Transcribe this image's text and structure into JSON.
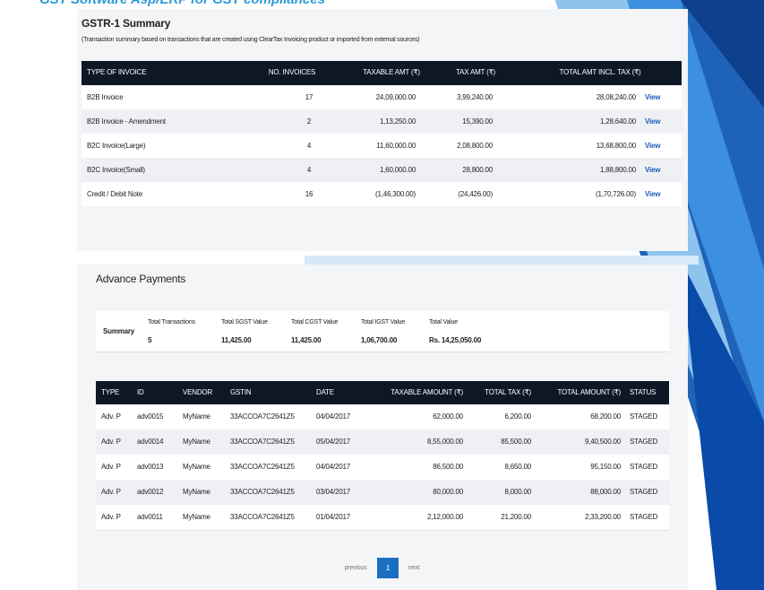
{
  "banner": "GST Software Asp/ERP for GST compliances",
  "gstr1": {
    "title": "GSTR-1 Summary",
    "subtitle": "(Transaction summary based on transactions that are created using ClearTax Invoicing product or imported from external sources)",
    "columns": [
      "TYPE OF INVOICE",
      "NO. INVOICES",
      "TAXABLE AMT (₹)",
      "TAX AMT (₹)",
      "TOTAL AMT INCL. TAX (₹)"
    ],
    "rows": [
      [
        "B2B Invoice",
        "17",
        "24,09,000.00",
        "3,99,240.00",
        "28,08,240.00",
        "View"
      ],
      [
        "B2B Invoice - Amendment",
        "2",
        "1,13,250.00",
        "15,390.00",
        "1,28,640.00",
        "View"
      ],
      [
        "B2C Invoice(Large)",
        "4",
        "11,60,000.00",
        "2,08,800.00",
        "13,68,800.00",
        "View"
      ],
      [
        "B2C Invoice(Small)",
        "4",
        "1,60,000.00",
        "28,800.00",
        "1,88,800.00",
        "View"
      ],
      [
        "Credit / Debit Note",
        "16",
        "(1,46,300.00)",
        "(24,426.00)",
        "(1,70,726.00)",
        "View"
      ]
    ]
  },
  "advance": {
    "title": "Advance Payments",
    "summary": {
      "label": "Summary",
      "fields": [
        {
          "label": "Total Transactions",
          "value": "5"
        },
        {
          "label": "Total SGST Value",
          "value": "11,425.00"
        },
        {
          "label": "Total CGST Value",
          "value": "11,425.00"
        },
        {
          "label": "Total IGST Value",
          "value": "1,06,700.00"
        },
        {
          "label": "Total Value",
          "value": "Rs. 14,25,050.00"
        }
      ]
    },
    "columns": [
      "TYPE",
      "ID",
      "VENDOR",
      "GSTIN",
      "DATE",
      "TAXABLE AMOUNT (₹)",
      "TOTAL TAX (₹)",
      "TOTAL AMOUNT (₹)",
      "STATUS"
    ],
    "rows": [
      [
        "Adv. P",
        "adv0015",
        "MyName",
        "33ACCOA7C2641Z5",
        "04/04/2017",
        "62,000.00",
        "6,200.00",
        "68,200.00",
        "STAGED"
      ],
      [
        "Adv. P",
        "adv0014",
        "MyName",
        "33ACCOA7C2641Z5",
        "05/04/2017",
        "8,55,000.00",
        "85,500.00",
        "9,40,500.00",
        "STAGED"
      ],
      [
        "Adv. P",
        "adv0013",
        "MyName",
        "33ACCOA7C2641Z5",
        "04/04/2017",
        "86,500.00",
        "8,650.00",
        "95,150.00",
        "STAGED"
      ],
      [
        "Adv. P",
        "adv0012",
        "MyName",
        "33ACCOA7C2641Z5",
        "03/04/2017",
        "80,000.00",
        "8,000.00",
        "88,000.00",
        "STAGED"
      ],
      [
        "Adv. P",
        "adv0011",
        "MyName",
        "33ACCOA7C2641Z5",
        "01/04/2017",
        "2,12,000.00",
        "21,200.00",
        "2,33,200.00",
        "STAGED"
      ]
    ],
    "pagination": {
      "previous": "previous",
      "current": "1",
      "next": "next"
    }
  }
}
